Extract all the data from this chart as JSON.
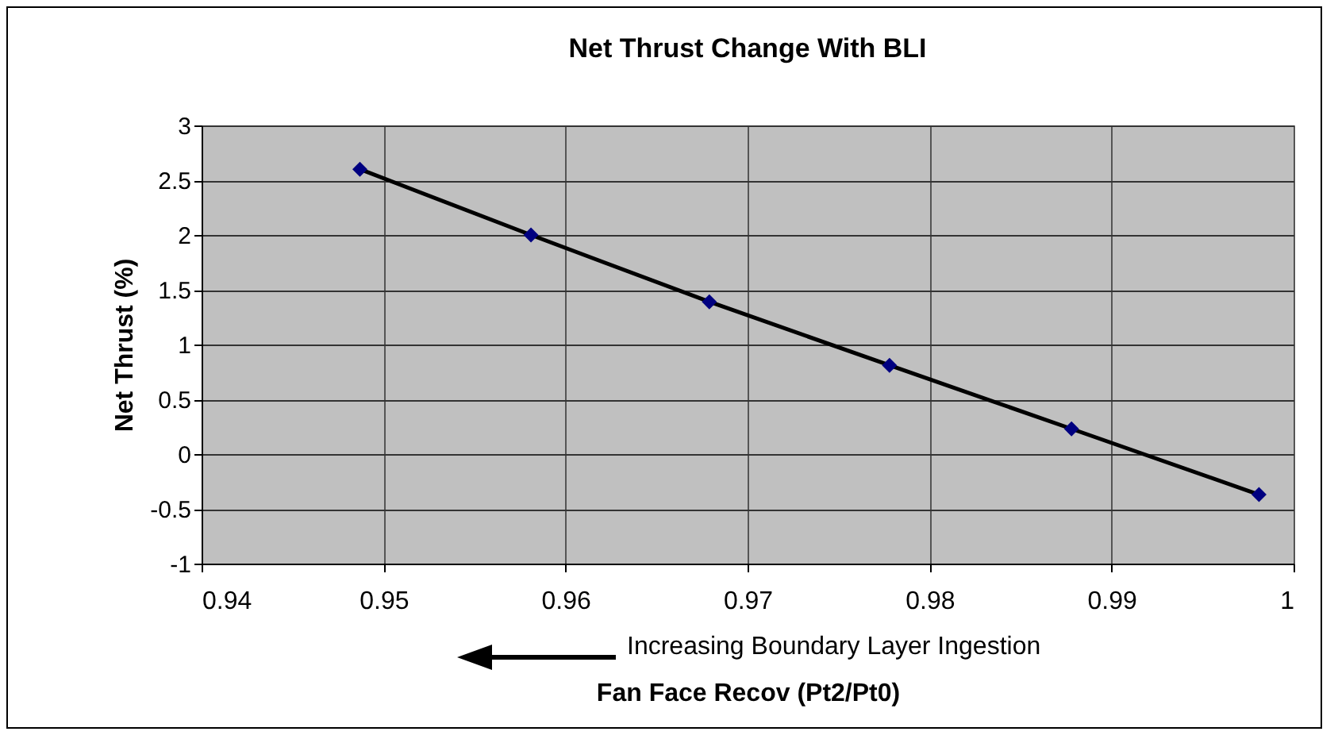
{
  "chart_data": {
    "type": "line",
    "title": "Net Thrust Change With  BLI",
    "xlabel": "Fan Face Recov (Pt2/Pt0)",
    "ylabel": "Net Thrust (%)",
    "x": [
      0.9487,
      0.9581,
      0.9679,
      0.9778,
      0.9878,
      0.9981
    ],
    "series": [
      {
        "color": "#000080",
        "values": [
          2.6,
          2.0,
          1.39,
          0.81,
          0.23,
          -0.37
        ]
      }
    ],
    "xlim": [
      0.94,
      1
    ],
    "xticks": [
      0.94,
      0.95,
      0.96,
      0.97,
      0.98,
      0.99,
      1
    ],
    "ylim": [
      -1,
      3
    ],
    "yticks": [
      -1,
      -0.5,
      0,
      0.5,
      1,
      1.5,
      2,
      2.5,
      3
    ],
    "grid": true,
    "marker": "diamond",
    "line_style": "solid",
    "annotations": [
      "Increasing Boundary Layer Ingestion"
    ]
  }
}
